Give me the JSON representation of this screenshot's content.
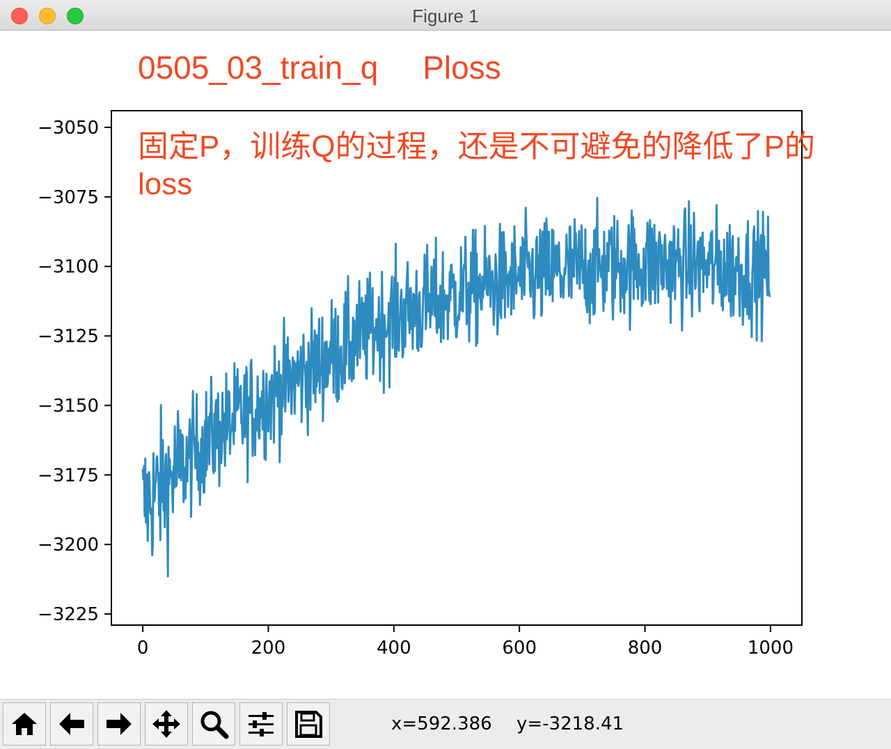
{
  "window": {
    "title": "Figure 1"
  },
  "toolbar": {
    "buttons": [
      {
        "name": "home-button",
        "icon": "home-icon"
      },
      {
        "name": "back-button",
        "icon": "arrow-left-icon"
      },
      {
        "name": "forward-button",
        "icon": "arrow-right-icon"
      },
      {
        "name": "pan-button",
        "icon": "move-icon"
      },
      {
        "name": "zoom-button",
        "icon": "magnifier-icon"
      },
      {
        "name": "configure-subplots-button",
        "icon": "sliders-icon"
      },
      {
        "name": "save-button",
        "icon": "floppy-disk-icon"
      }
    ],
    "x_readout": "x=592.386",
    "y_readout": "y=-3218.41"
  },
  "chart_data": {
    "type": "line",
    "title": "0505_03_train_q     Ploss",
    "annotation": "固定P，训练Q的过程，还是不可避免的降低了P的loss",
    "xlabel": "",
    "ylabel": "",
    "xlim": [
      -50,
      1050
    ],
    "ylim": [
      -3229,
      -3044
    ],
    "x_ticks": [
      0,
      200,
      400,
      600,
      800,
      1000
    ],
    "x_tick_labels": [
      "0",
      "200",
      "400",
      "600",
      "800",
      "1000"
    ],
    "y_ticks": [
      -3050,
      -3075,
      -3100,
      -3125,
      -3150,
      -3175,
      -3200,
      -3225
    ],
    "y_tick_labels": [
      "−3050",
      "−3075",
      "−3100",
      "−3125",
      "−3150",
      "−3175",
      "−3200",
      "−3225"
    ],
    "grid": false,
    "series": [
      {
        "color": "#2e8bc0",
        "x_start": 0,
        "x_end": 999,
        "trend": [
          [
            0,
            -3186
          ],
          [
            50,
            -3175
          ],
          [
            100,
            -3163
          ],
          [
            200,
            -3147
          ],
          [
            300,
            -3132
          ],
          [
            400,
            -3118
          ],
          [
            500,
            -3110
          ],
          [
            600,
            -3104
          ],
          [
            700,
            -3101
          ],
          [
            800,
            -3099
          ],
          [
            900,
            -3100
          ],
          [
            999,
            -3102
          ]
        ],
        "noise_amplitude": 12,
        "min": -3221,
        "max": -3060,
        "last": -3111
      }
    ]
  }
}
